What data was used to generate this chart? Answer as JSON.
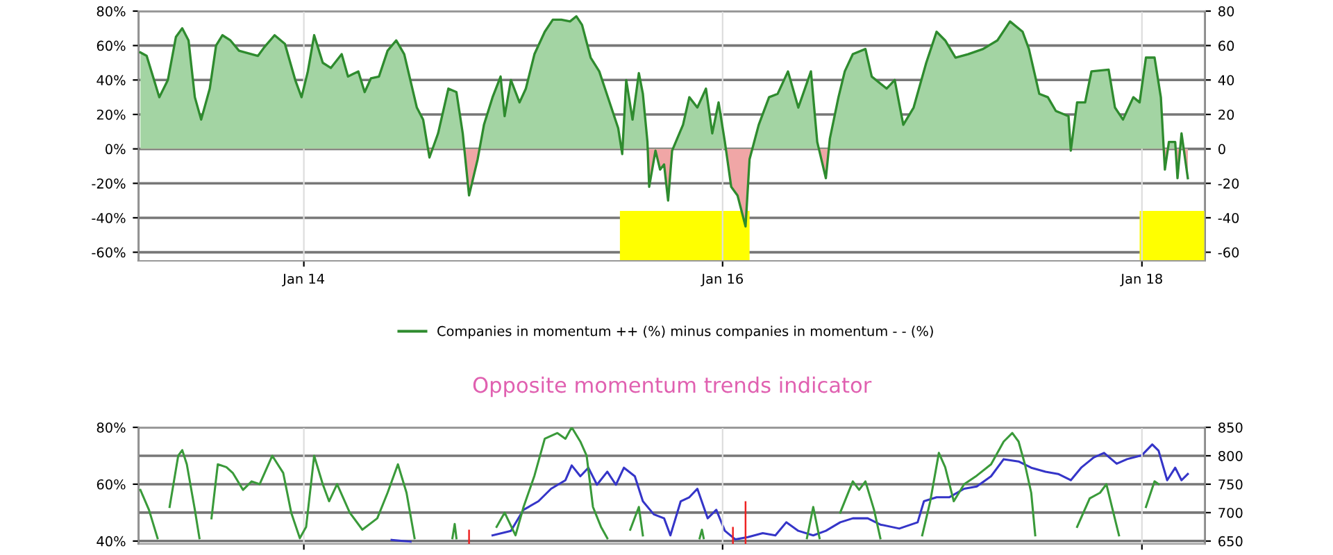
{
  "chart_data": [
    {
      "type": "area",
      "xlim": [
        "2013-03-19",
        "2018-04-21"
      ],
      "xticks": [
        {
          "value": "2014-01-01",
          "label": "Jan 14"
        },
        {
          "value": "2016-01-01",
          "label": "Jan 16"
        },
        {
          "value": "2018-01-01",
          "label": "Jan 18"
        }
      ],
      "ylim": [
        -65,
        80
      ],
      "yticks": [
        {
          "value": -60,
          "label": "-60%"
        },
        {
          "value": -40,
          "label": "-40%"
        },
        {
          "value": -20,
          "label": "-20%"
        },
        {
          "value": 0,
          "label": "0%"
        },
        {
          "value": 20,
          "label": "20%"
        },
        {
          "value": 40,
          "label": "40%"
        },
        {
          "value": 60,
          "label": "60%"
        },
        {
          "value": 80,
          "label": "80%"
        }
      ],
      "y2lim": [
        -65,
        80
      ],
      "y2ticks": [
        -60,
        -40,
        -20,
        0,
        20,
        40,
        60,
        80
      ],
      "grid": true,
      "legend": "bottom",
      "bands": [
        {
          "axis": "x",
          "from": "2015-07-06",
          "to": "2016-02-17",
          "color": "#ffff00"
        },
        {
          "axis": "x",
          "from": "2017-12-28",
          "to": "2018-04-21",
          "color": "#ffff00"
        }
      ],
      "series": [
        {
          "name": "Companies in momentum ++ (%) minus companies in momentum - - (%)",
          "color": "#2e8b2e",
          "colors": [
            "#a3d4a3",
            "#a3d4a3",
            "#a3d4a3",
            "#a3d4a3",
            "#a3d4a3",
            "#a3d4a3",
            "#a3d4a3",
            "#a3d4a3",
            "#a3d4a3",
            "#a3d4a3",
            "#a3d4a3",
            "#a3d4a3",
            "#a3d4a3",
            "#a3d4a3",
            "#a3d4a3",
            "#a3d4a3",
            "#a3d4a3",
            "#a3d4a3",
            "#a3d4a3",
            "#a3d4a3",
            "#a3d4a3",
            "#a3d4a3",
            "#a3d4a3",
            "#a3d4a3",
            "#a3d4a3",
            "#a3d4a3",
            "#a3d4a3",
            "#a3d4a3",
            "#a3d4a3",
            "#a3d4a3",
            "#a3d4a3",
            "#a3d4a3",
            "#a3d4a3",
            "#a3d4a3",
            "#a3d4a3",
            "#a3d4a3",
            "#f0a6a6",
            "#a3d4a3",
            "#a3d4a3",
            "#a3d4a3",
            "#a3d4a3",
            "#f0a6a6",
            "#f0a6a6",
            "#a3d4a3",
            "#a3d4a3",
            "#a3d4a3",
            "#a3d4a3",
            "#a3d4a3",
            "#a3d4a3",
            "#a3d4a3",
            "#a3d4a3",
            "#a3d4a3",
            "#a3d4a3",
            "#a3d4a3",
            "#a3d4a3",
            "#a3d4a3",
            "#a3d4a3",
            "#a3d4a3",
            "#a3d4a3",
            "#a3d4a3",
            "#a3d4a3",
            "#f0a6a6",
            "#a3d4a3",
            "#a3d4a3",
            "#a3d4a3",
            "#a3d4a3",
            "#a3d4a3",
            "#f0a6a6",
            "#f0a6a6",
            "#f0a6a6",
            "#f0a6a6",
            "#f0a6a6",
            "#f0a6a6",
            "#a3d4a3",
            "#a3d4a3",
            "#a3d4a3",
            "#a3d4a3",
            "#a3d4a3",
            "#a3d4a3",
            "#a3d4a3",
            "#f0a6a6",
            "#f0a6a6",
            "#f0a6a6",
            "#f0a6a6",
            "#a3d4a3",
            "#a3d4a3",
            "#a3d4a3",
            "#a3d4a3",
            "#a3d4a3",
            "#a3d4a3",
            "#a3d4a3",
            "#f0a6a6",
            "#a3d4a3",
            "#a3d4a3",
            "#a3d4a3",
            "#a3d4a3",
            "#a3d4a3",
            "#a3d4a3",
            "#a3d4a3",
            "#a3d4a3",
            "#a3d4a3",
            "#a3d4a3",
            "#a3d4a3",
            "#a3d4a3",
            "#a3d4a3",
            "#a3d4a3",
            "#a3d4a3",
            "#a3d4a3",
            "#a3d4a3",
            "#a3d4a3",
            "#a3d4a3",
            "#a3d4a3",
            "#a3d4a3",
            "#a3d4a3",
            "#a3d4a3",
            "#a3d4a3",
            "#f0a6a6",
            "#a3d4a3",
            "#a3d4a3",
            "#a3d4a3",
            "#a3d4a3",
            "#a3d4a3",
            "#a3d4a3",
            "#a3d4a3",
            "#a3d4a3",
            "#a3d4a3",
            "#a3d4a3",
            "#a3d4a3",
            "#f0a6a6",
            "#a3d4a3",
            "#a3d4a3",
            "#f0a6a6",
            "#a3d4a3",
            "#f0a6a6"
          ],
          "x": [
            "2013-03-22",
            "2013-04-02",
            "2013-04-13",
            "2013-04-24",
            "2013-05-09",
            "2013-05-23",
            "2013-06-03",
            "2013-06-14",
            "2013-06-25",
            "2013-07-06",
            "2013-07-21",
            "2013-08-01",
            "2013-08-12",
            "2013-08-26",
            "2013-09-10",
            "2013-10-13",
            "2013-10-24",
            "2013-11-11",
            "2013-11-29",
            "2013-12-17",
            "2013-12-28",
            "2014-01-08",
            "2014-01-19",
            "2014-02-03",
            "2014-02-17",
            "2014-03-08",
            "2014-03-19",
            "2014-04-06",
            "2014-04-17",
            "2014-04-28",
            "2014-05-12",
            "2014-05-27",
            "2014-06-11",
            "2014-06-25",
            "2014-07-17",
            "2014-07-28",
            "2014-08-08",
            "2014-08-23",
            "2014-09-10",
            "2014-09-24",
            "2014-10-05",
            "2014-10-16",
            "2014-10-31",
            "2014-11-11",
            "2014-11-26",
            "2014-12-10",
            "2014-12-17",
            "2014-12-28",
            "2015-01-12",
            "2015-01-23",
            "2015-02-07",
            "2015-02-25",
            "2015-03-11",
            "2015-03-26",
            "2015-04-10",
            "2015-04-21",
            "2015-05-01",
            "2015-05-16",
            "2015-05-31",
            "2015-06-18",
            "2015-07-03",
            "2015-07-10",
            "2015-07-17",
            "2015-07-28",
            "2015-08-08",
            "2015-08-15",
            "2015-08-23",
            "2015-08-26",
            "2015-09-06",
            "2015-09-14",
            "2015-09-21",
            "2015-09-28",
            "2015-10-05",
            "2015-10-24",
            "2015-11-04",
            "2015-11-18",
            "2015-12-03",
            "2015-12-14",
            "2015-12-25",
            "2016-01-05",
            "2016-01-16",
            "2016-01-27",
            "2016-02-10",
            "2016-02-17",
            "2016-03-04",
            "2016-03-22",
            "2016-04-06",
            "2016-04-24",
            "2016-05-12",
            "2016-06-03",
            "2016-06-14",
            "2016-06-29",
            "2016-07-06",
            "2016-07-21",
            "2016-08-01",
            "2016-08-15",
            "2016-09-06",
            "2016-09-17",
            "2016-10-13",
            "2016-10-27",
            "2016-11-11",
            "2016-11-29",
            "2016-12-21",
            "2017-01-08",
            "2017-01-23",
            "2017-02-10",
            "2017-03-04",
            "2017-03-30",
            "2017-04-24",
            "2017-05-16",
            "2017-06-07",
            "2017-06-18",
            "2017-07-06",
            "2017-07-21",
            "2017-08-04",
            "2017-08-26",
            "2017-08-30",
            "2017-09-10",
            "2017-09-24",
            "2017-10-05",
            "2017-11-04",
            "2017-11-15",
            "2017-11-29",
            "2017-12-17",
            "2017-12-28",
            "2018-01-08",
            "2018-01-23",
            "2018-02-03",
            "2018-02-10",
            "2018-02-17",
            "2018-02-28",
            "2018-03-04",
            "2018-03-11",
            "2018-03-22"
          ],
          "values": [
            56,
            54,
            42,
            30,
            40,
            65,
            70,
            63,
            30,
            17,
            35,
            60,
            66,
            63,
            57,
            54,
            59,
            66,
            61,
            40,
            30,
            45,
            66,
            50,
            47,
            55,
            42,
            45,
            33,
            41,
            42,
            57,
            63,
            55,
            24,
            17,
            -5,
            9,
            35,
            33,
            9,
            -27,
            -6,
            14,
            30,
            42,
            19,
            40,
            27,
            35,
            55,
            68,
            75,
            75,
            74,
            77,
            72,
            53,
            45,
            27,
            12,
            -3,
            40,
            17,
            44,
            32,
            4,
            -22,
            -1,
            -12,
            -9,
            -30,
            -1,
            14,
            30,
            24,
            35,
            9,
            27,
            4,
            -22,
            -27,
            -45,
            -6,
            14,
            30,
            32,
            45,
            24,
            45,
            4,
            -17,
            6,
            30,
            45,
            55,
            58,
            42,
            35,
            40,
            14,
            24,
            50,
            68,
            63,
            53,
            55,
            58,
            63,
            74,
            68,
            58,
            32,
            30,
            22,
            19,
            -1,
            27,
            27,
            45,
            46,
            24,
            17,
            30,
            27,
            53,
            53,
            30,
            -12,
            4,
            4,
            -17,
            9,
            -17
          ]
        }
      ]
    },
    {
      "type": "line",
      "title": "Opposite momentum trends indicator",
      "xlim": [
        "2013-03-19",
        "2018-04-21"
      ],
      "xticks": [
        {
          "value": "2014-01-01",
          "label": null
        },
        {
          "value": "2016-01-01",
          "label": null
        },
        {
          "value": "2018-01-01",
          "label": null
        }
      ],
      "ylim": [
        39,
        80
      ],
      "yticks": [
        {
          "value": 40,
          "label": "40%"
        },
        {
          "value": 60,
          "label": "60%"
        },
        {
          "value": 80,
          "label": "80%"
        }
      ],
      "y2lim": [
        645,
        850
      ],
      "y2ticks": [
        650,
        700,
        750,
        800,
        850
      ],
      "grid": true,
      "tick_labels": "y",
      "series": [
        {
          "color": "#3a9a3a",
          "x": [
            "2013-03-22",
            "2013-04-06",
            "2013-04-21",
            "2013-04-24",
            "2013-05-12",
            "2013-05-27",
            "2013-06-03",
            "2013-06-11",
            "2013-06-25",
            "2013-07-03",
            "2013-07-13",
            "2013-07-24",
            "2013-08-04",
            "2013-08-19",
            "2013-08-30",
            "2013-09-17",
            "2013-10-02",
            "2013-10-16",
            "2013-11-07",
            "2013-11-26",
            "2013-12-10",
            "2013-12-25",
            "2014-01-05",
            "2014-01-19",
            "2014-02-03",
            "2014-02-14",
            "2014-02-28",
            "2014-03-22",
            "2014-04-13",
            "2014-05-09",
            "2014-05-27",
            "2014-06-14",
            "2014-06-29",
            "2014-07-13",
            "2014-07-24",
            "2014-09-17",
            "2014-09-21",
            "2014-09-24",
            "2014-09-28",
            "2014-12-03",
            "2014-12-17",
            "2015-01-05",
            "2015-01-19",
            "2015-02-07",
            "2015-02-25",
            "2015-03-19",
            "2015-04-02",
            "2015-04-13",
            "2015-04-28",
            "2015-05-09",
            "2015-05-20",
            "2015-06-03",
            "2015-06-14",
            "2015-07-03",
            "2015-07-24",
            "2015-08-08",
            "2015-08-15",
            "2015-09-14",
            "2015-11-22",
            "2015-11-26",
            "2015-11-29",
            "2015-12-14",
            "2016-05-27",
            "2016-06-07",
            "2016-06-18",
            "2016-07-03",
            "2016-07-24",
            "2016-08-15",
            "2016-08-26",
            "2016-09-06",
            "2016-09-21",
            "2016-10-02",
            "2016-11-07",
            "2016-12-14",
            "2016-12-28",
            "2017-01-12",
            "2017-01-23",
            "2017-02-07",
            "2017-02-25",
            "2017-03-19",
            "2017-04-13",
            "2017-05-05",
            "2017-05-20",
            "2017-05-31",
            "2017-06-11",
            "2017-06-22",
            "2017-06-29",
            "2017-08-08",
            "2017-09-10",
            "2017-10-02",
            "2017-10-20",
            "2017-10-31",
            "2017-11-11",
            "2017-11-22",
            "2017-11-29",
            "2017-12-06",
            "2017-12-17",
            "2018-01-08",
            "2018-01-23",
            "2018-01-30"
          ],
          "values": [
            58,
            51,
            41,
            null,
            52,
            70,
            72,
            67,
            51,
            41,
            null,
            48,
            67,
            66,
            64,
            58,
            61,
            60,
            70,
            64,
            50,
            41,
            45,
            70,
            60,
            54,
            60,
            50,
            44,
            48,
            57,
            67,
            57,
            41,
            null,
            41,
            46,
            41,
            null,
            45,
            50,
            42,
            52,
            63,
            76,
            78,
            76,
            80,
            75,
            70,
            52,
            45,
            41,
            null,
            44,
            52,
            42,
            null,
            41,
            44,
            41,
            null,
            41,
            52,
            41,
            null,
            50,
            61,
            58,
            61,
            51,
            41,
            null,
            42,
            54,
            71,
            66,
            54,
            60,
            63,
            67,
            75,
            78,
            75,
            67,
            57,
            42,
            null,
            45,
            55,
            57,
            60,
            51,
            42,
            null,
            null,
            null,
            52,
            61,
            60
          ]
        },
        {
          "color": "#3535c8",
          "axis": "y2",
          "x": [
            "2014-06-03",
            "2014-07-06",
            "2014-08-08",
            "2014-09-06",
            "2014-10-20",
            "2014-11-26",
            "2014-12-28",
            "2015-01-19",
            "2015-02-14",
            "2015-03-08",
            "2015-04-02",
            "2015-04-13",
            "2015-04-28",
            "2015-05-12",
            "2015-05-27",
            "2015-06-14",
            "2015-06-29",
            "2015-07-13",
            "2015-08-01",
            "2015-08-15",
            "2015-09-03",
            "2015-09-21",
            "2015-10-02",
            "2015-10-20",
            "2015-11-04",
            "2015-11-18",
            "2015-12-06",
            "2015-12-21",
            "2016-01-05",
            "2016-01-23",
            "2016-02-14",
            "2016-03-11",
            "2016-04-02",
            "2016-04-21",
            "2016-05-12",
            "2016-06-07",
            "2016-06-29",
            "2016-07-24",
            "2016-08-15",
            "2016-09-10",
            "2016-10-02",
            "2016-11-04",
            "2016-12-06",
            "2016-12-17",
            "2017-01-08",
            "2017-01-30",
            "2017-02-25",
            "2017-03-19",
            "2017-04-13",
            "2017-05-05",
            "2017-05-31",
            "2017-06-22",
            "2017-07-17",
            "2017-08-08",
            "2017-08-30",
            "2017-09-17",
            "2017-10-09",
            "2017-10-27",
            "2017-11-18",
            "2017-12-06",
            "2018-01-01",
            "2018-01-19",
            "2018-01-30",
            "2018-02-14",
            "2018-02-28",
            "2018-03-11",
            "2018-03-22"
          ],
          "values": [
            652,
            649,
            null,
            null,
            null,
            660,
            668,
            705,
            720,
            742,
            757,
            783,
            764,
            779,
            749,
            772,
            749,
            779,
            764,
            720,
            697,
            690,
            660,
            720,
            727,
            742,
            690,
            705,
            668,
            653,
            657,
            664,
            660,
            683,
            668,
            660,
            668,
            683,
            690,
            690,
            679,
            672,
            683,
            720,
            727,
            727,
            742,
            746,
            764,
            794,
            790,
            779,
            772,
            768,
            757,
            779,
            797,
            805,
            786,
            794,
            801,
            820,
            809,
            757,
            779,
            757,
            768
          ]
        },
        {
          "type": "bar",
          "color": "#ee2222",
          "x": [
            "2014-10-16",
            "2016-01-19",
            "2016-02-10"
          ],
          "values": [
            44,
            45,
            54
          ]
        }
      ]
    }
  ]
}
